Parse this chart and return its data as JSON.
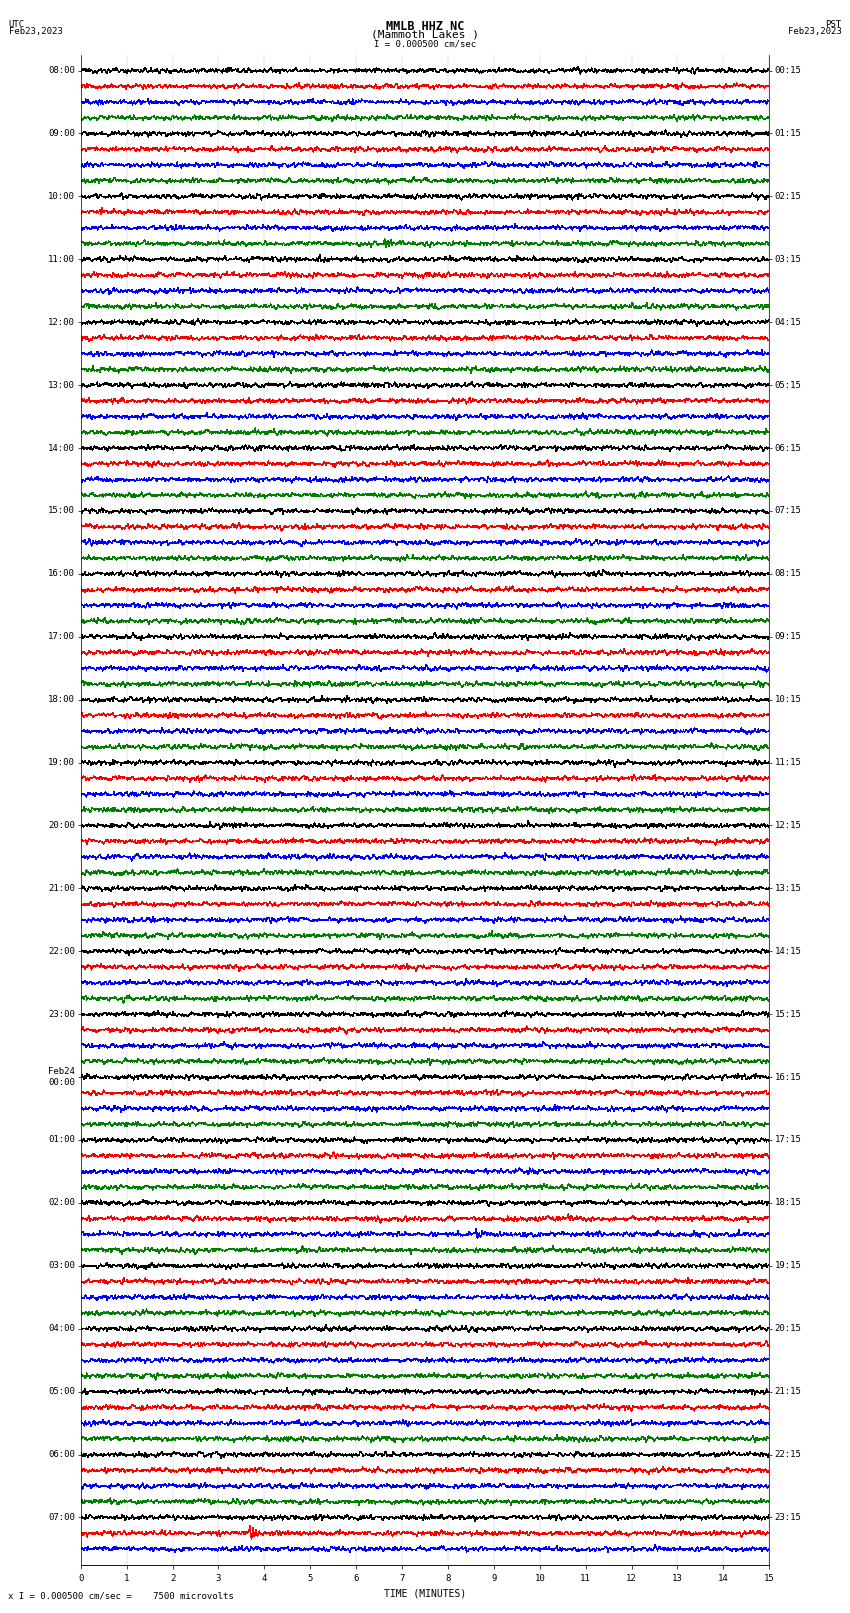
{
  "title_line1": "MMLB HHZ NC",
  "title_line2": "(Mammoth Lakes )",
  "scale_label": "I = 0.000500 cm/sec",
  "footer_label": "x I = 0.000500 cm/sec =    7500 microvolts",
  "xlabel": "TIME (MINUTES)",
  "left_times": [
    "08:00",
    "",
    "",
    "",
    "09:00",
    "",
    "",
    "",
    "10:00",
    "",
    "",
    "",
    "11:00",
    "",
    "",
    "",
    "12:00",
    "",
    "",
    "",
    "13:00",
    "",
    "",
    "",
    "14:00",
    "",
    "",
    "",
    "15:00",
    "",
    "",
    "",
    "16:00",
    "",
    "",
    "",
    "17:00",
    "",
    "",
    "",
    "18:00",
    "",
    "",
    "",
    "19:00",
    "",
    "",
    "",
    "20:00",
    "",
    "",
    "",
    "21:00",
    "",
    "",
    "",
    "22:00",
    "",
    "",
    "",
    "23:00",
    "",
    "",
    "",
    "Feb24\n00:00",
    "",
    "",
    "",
    "01:00",
    "",
    "",
    "",
    "02:00",
    "",
    "",
    "",
    "03:00",
    "",
    "",
    "",
    "04:00",
    "",
    "",
    "",
    "05:00",
    "",
    "",
    "",
    "06:00",
    "",
    "",
    "",
    "07:00",
    "",
    ""
  ],
  "right_times": [
    "00:15",
    "",
    "",
    "",
    "01:15",
    "",
    "",
    "",
    "02:15",
    "",
    "",
    "",
    "03:15",
    "",
    "",
    "",
    "04:15",
    "",
    "",
    "",
    "05:15",
    "",
    "",
    "",
    "06:15",
    "",
    "",
    "",
    "07:15",
    "",
    "",
    "",
    "08:15",
    "",
    "",
    "",
    "09:15",
    "",
    "",
    "",
    "10:15",
    "",
    "",
    "",
    "11:15",
    "",
    "",
    "",
    "12:15",
    "",
    "",
    "",
    "13:15",
    "",
    "",
    "",
    "14:15",
    "",
    "",
    "",
    "15:15",
    "",
    "",
    "",
    "16:15",
    "",
    "",
    "",
    "17:15",
    "",
    "",
    "",
    "18:15",
    "",
    "",
    "",
    "19:15",
    "",
    "",
    "",
    "20:15",
    "",
    "",
    "",
    "21:15",
    "",
    "",
    "",
    "22:15",
    "",
    "",
    "",
    "23:15",
    "",
    ""
  ],
  "colors": [
    "black",
    "red",
    "blue",
    "green"
  ],
  "n_rows": 95,
  "n_pts": 1800,
  "xmin": 0,
  "xmax": 15,
  "noise_amp": 0.12,
  "bg_color": "white",
  "font_size": 6.5,
  "title_font_size": 8.5,
  "lw": 0.3
}
